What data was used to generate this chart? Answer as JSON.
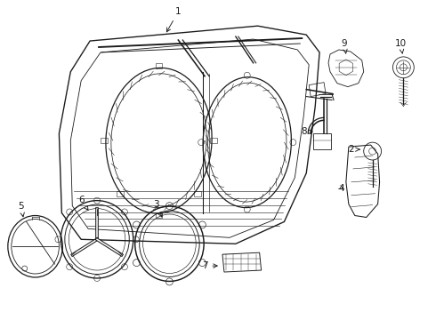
{
  "bg_color": "#ffffff",
  "line_color": "#1a1a1a",
  "lw": 0.75,
  "fig_w": 4.9,
  "fig_h": 3.6,
  "dpi": 100
}
